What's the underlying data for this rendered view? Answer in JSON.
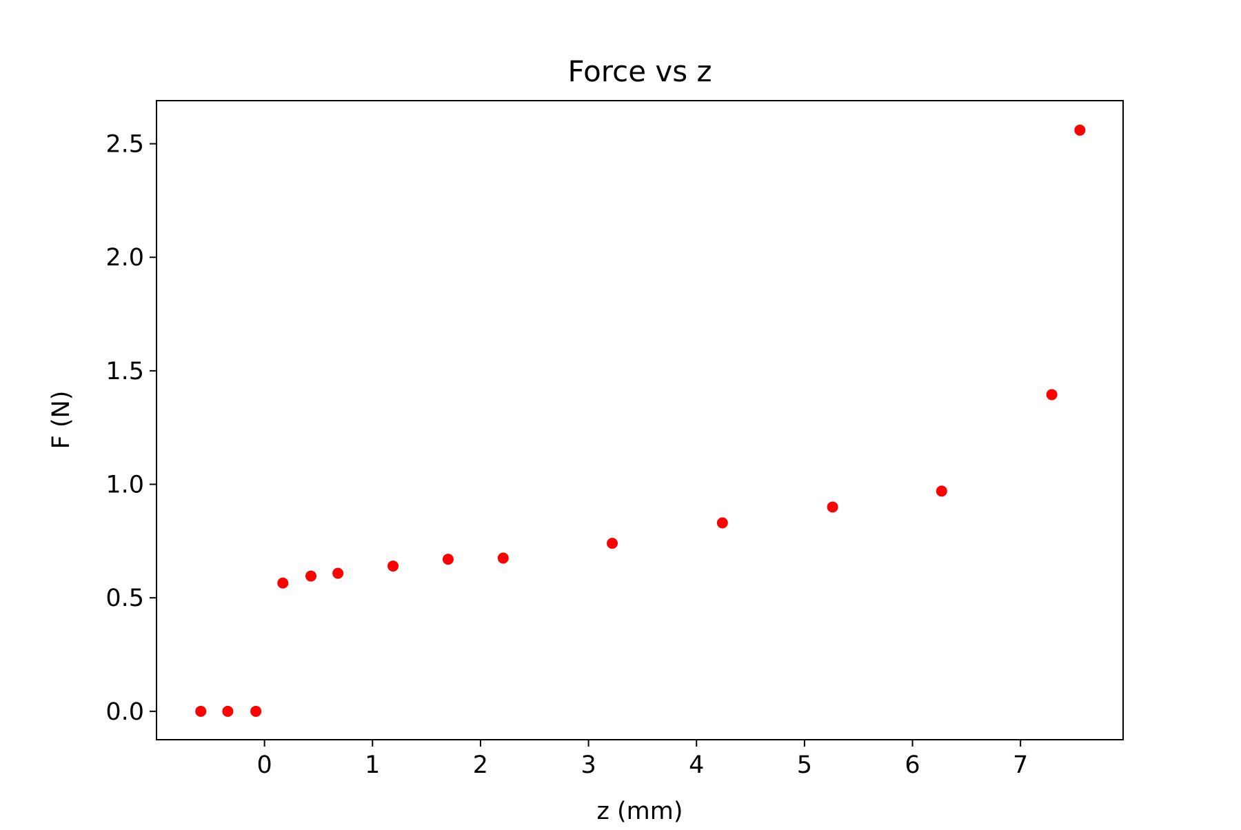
{
  "chart_data": {
    "type": "scatter",
    "title": "Force vs z",
    "xlabel": "z (mm)",
    "ylabel": "F (N)",
    "xlim": [
      -1.0,
      7.95
    ],
    "ylim": [
      -0.125,
      2.69
    ],
    "x_ticks": [
      0,
      1,
      2,
      3,
      4,
      5,
      6,
      7
    ],
    "x_tick_labels": [
      "0",
      "1",
      "2",
      "3",
      "4",
      "5",
      "6",
      "7"
    ],
    "y_ticks": [
      0.0,
      0.5,
      1.0,
      1.5,
      2.0,
      2.5
    ],
    "y_tick_labels": [
      "0.0",
      "0.5",
      "1.0",
      "1.5",
      "2.0",
      "2.5"
    ],
    "grid": false,
    "marker_color": "#ff0000",
    "series": [
      {
        "points": [
          {
            "x": -0.59,
            "y": 0.0
          },
          {
            "x": -0.34,
            "y": 0.0
          },
          {
            "x": -0.08,
            "y": 0.0
          },
          {
            "x": 0.17,
            "y": 0.565
          },
          {
            "x": 0.43,
            "y": 0.596
          },
          {
            "x": 0.68,
            "y": 0.608
          },
          {
            "x": 1.19,
            "y": 0.64
          },
          {
            "x": 1.7,
            "y": 0.67
          },
          {
            "x": 2.21,
            "y": 0.675
          },
          {
            "x": 3.22,
            "y": 0.74
          },
          {
            "x": 4.24,
            "y": 0.83
          },
          {
            "x": 5.26,
            "y": 0.9
          },
          {
            "x": 6.27,
            "y": 0.97
          },
          {
            "x": 7.29,
            "y": 1.395
          },
          {
            "x": 7.55,
            "y": 2.56
          }
        ]
      }
    ]
  }
}
